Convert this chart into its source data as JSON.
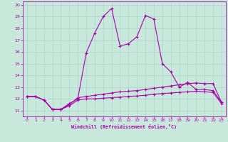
{
  "xlabel": "Windchill (Refroidissement éolien,°C)",
  "background_color": "#c8e8dc",
  "line_color": "#aa00aa",
  "grid_color": "#aad4c8",
  "xlim": [
    -0.5,
    23.5
  ],
  "ylim": [
    10.5,
    20.3
  ],
  "xticks": [
    0,
    1,
    2,
    3,
    4,
    5,
    6,
    7,
    8,
    9,
    10,
    11,
    12,
    13,
    14,
    15,
    16,
    17,
    18,
    19,
    20,
    21,
    22,
    23
  ],
  "yticks": [
    11,
    12,
    13,
    14,
    15,
    16,
    17,
    18,
    19,
    20
  ],
  "curve1_x": [
    0,
    1,
    2,
    3,
    4,
    5,
    6,
    7,
    8,
    9,
    10,
    11,
    12,
    13,
    14,
    15,
    16,
    17,
    18,
    19,
    20,
    21,
    22,
    23
  ],
  "curve1_y": [
    12.2,
    12.2,
    11.9,
    11.1,
    11.1,
    11.6,
    12.0,
    15.9,
    17.6,
    19.0,
    19.7,
    16.5,
    16.7,
    17.3,
    19.1,
    18.8,
    15.0,
    14.3,
    13.0,
    13.4,
    12.8,
    12.8,
    12.7,
    11.7
  ],
  "curve2_x": [
    0,
    1,
    2,
    3,
    4,
    5,
    6,
    7,
    8,
    9,
    10,
    11,
    12,
    13,
    14,
    15,
    16,
    17,
    18,
    19,
    20,
    21,
    22,
    23
  ],
  "curve2_y": [
    12.2,
    12.2,
    11.9,
    11.1,
    11.1,
    11.5,
    12.1,
    12.2,
    12.3,
    12.4,
    12.5,
    12.6,
    12.65,
    12.7,
    12.8,
    12.9,
    13.0,
    13.1,
    13.2,
    13.3,
    13.35,
    13.3,
    13.3,
    11.7
  ],
  "curve3_x": [
    0,
    1,
    2,
    3,
    4,
    5,
    6,
    7,
    8,
    9,
    10,
    11,
    12,
    13,
    14,
    15,
    16,
    17,
    18,
    19,
    20,
    21,
    22,
    23
  ],
  "curve3_y": [
    12.2,
    12.2,
    11.9,
    11.1,
    11.1,
    11.4,
    11.9,
    12.0,
    12.0,
    12.05,
    12.1,
    12.15,
    12.2,
    12.25,
    12.3,
    12.4,
    12.45,
    12.5,
    12.55,
    12.6,
    12.65,
    12.6,
    12.55,
    11.6
  ]
}
